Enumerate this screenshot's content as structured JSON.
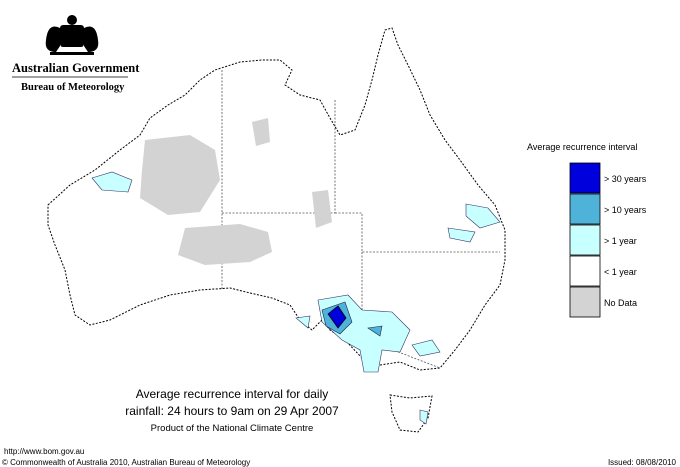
{
  "header": {
    "government": "Australian Government",
    "agency": "Bureau of Meteorology"
  },
  "legend": {
    "title": "Average recurrence interval",
    "items": [
      {
        "label": "> 30 years",
        "color": "#0000dd"
      },
      {
        "label": "> 10 years",
        "color": "#4fb3d9"
      },
      {
        "label": "> 1 year",
        "color": "#c8ffff"
      },
      {
        "label": "< 1 year",
        "color": "#ffffff"
      },
      {
        "label": "No Data",
        "color": "#d3d3d3"
      }
    ]
  },
  "caption": {
    "line1": "Average recurrence interval for daily",
    "line2": "rainfall: 24 hours to 9am on 29 Apr 2007",
    "line3": "Product of the National Climate Centre"
  },
  "footer": {
    "url": "http://www.bom.gov.au",
    "copyright": "© Commonwealth of Australia 2010, Australian Bureau of Meteorology",
    "issued": "Issued: 08/08/2010"
  }
}
